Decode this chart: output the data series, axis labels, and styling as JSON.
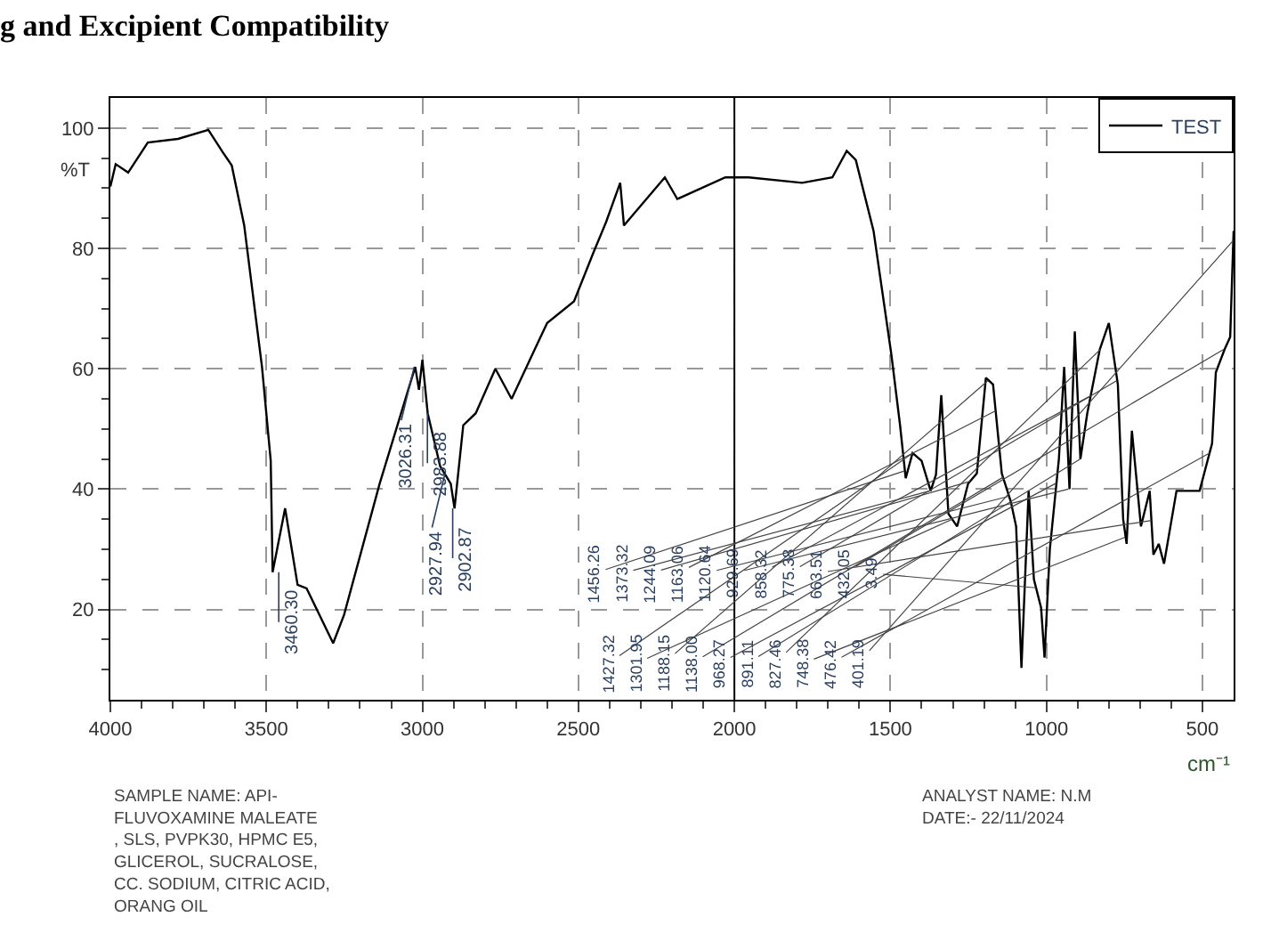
{
  "chart_data": {
    "type": "line",
    "title": "g and Excipient Compatibility",
    "xlabel": "cm⁻¹",
    "ylabel": "%T",
    "x": [
      4000,
      3983,
      3943,
      3880,
      3783,
      3686,
      3640,
      3611,
      3571,
      3514,
      3486,
      3480,
      3440,
      3400,
      3371,
      3286,
      3251,
      3137,
      3023,
      3011,
      3000,
      2983,
      2943,
      2909,
      2897,
      2869,
      2829,
      2766,
      2714,
      2640,
      2600,
      2514,
      2451,
      2411,
      2366,
      2354,
      2223,
      2183,
      2029,
      1954,
      1783,
      1686,
      1640,
      1611,
      1554,
      1497,
      1469,
      1451,
      1429,
      1400,
      1371,
      1354,
      1337,
      1314,
      1286,
      1251,
      1223,
      1194,
      1171,
      1143,
      1114,
      1097,
      1080,
      1057,
      1040,
      1017,
      1006,
      989,
      960,
      943,
      926,
      909,
      891,
      869,
      829,
      800,
      771,
      754,
      743,
      726,
      697,
      669,
      657,
      640,
      623,
      583,
      509,
      469,
      457,
      429,
      411,
      400
    ],
    "series": [
      {
        "name": "TEST",
        "color": "#000000",
        "values": [
          90.3,
          94,
          92.6,
          97.6,
          98.2,
          99.7,
          96,
          93.8,
          83.8,
          60.3,
          44.7,
          26.2,
          36.8,
          24.1,
          23.5,
          14.4,
          19.1,
          40.9,
          60.3,
          56.5,
          61.5,
          52.6,
          43.8,
          40.9,
          36.8,
          50.6,
          52.6,
          60,
          55,
          63.2,
          67.6,
          71.2,
          79.4,
          84.4,
          90.9,
          83.8,
          91.8,
          88.2,
          91.8,
          91.8,
          90.9,
          91.8,
          96.2,
          94.7,
          82.9,
          62.4,
          50.6,
          41.8,
          46,
          44.7,
          39.7,
          42.4,
          55.6,
          35.9,
          33.8,
          40.9,
          42.6,
          58.5,
          57.4,
          42.6,
          37.9,
          33.8,
          10.3,
          39.7,
          25,
          20.3,
          12,
          30,
          45,
          60.3,
          40,
          66.2,
          45,
          52.6,
          63.2,
          67.6,
          57.4,
          35,
          30.9,
          49.7,
          33.8,
          39.7,
          29.1,
          30.9,
          27.6,
          39.7,
          39.7,
          47.6,
          59.4,
          63.2,
          65.3,
          82.9
        ]
      }
    ],
    "xlim": [
      4000,
      400
    ],
    "ylim": [
      5,
      105
    ],
    "xticks": [
      4000,
      {
        "value": 3900,
        "label": null
      },
      {
        "value": 3800,
        "label": null
      },
      {
        "value": 3700,
        "label": null
      },
      {
        "value": 3600,
        "label": null
      },
      3500,
      {
        "value": 3400,
        "label": null
      },
      {
        "value": 3300,
        "label": null
      },
      {
        "value": 3200,
        "label": null
      },
      {
        "value": 3100,
        "label": null
      },
      3000,
      {
        "value": 2900,
        "label": null
      },
      {
        "value": 2800,
        "label": null
      },
      {
        "value": 2700,
        "label": null
      },
      {
        "value": 2600,
        "label": null
      },
      2500,
      {
        "value": 2400,
        "label": null
      },
      {
        "value": 2300,
        "label": null
      },
      {
        "value": 2200,
        "label": null
      },
      {
        "value": 2100,
        "label": null
      },
      2000,
      {
        "value": 1900,
        "label": null
      },
      {
        "value": 1800,
        "label": null
      },
      {
        "value": 1700,
        "label": null
      },
      {
        "value": 1600,
        "label": null
      },
      1500,
      {
        "value": 1400,
        "label": null
      },
      {
        "value": 1300,
        "label": null
      },
      {
        "value": 1200,
        "label": null
      },
      {
        "value": 1100,
        "label": null
      },
      1000,
      {
        "value": 900,
        "label": null
      },
      {
        "value": 800,
        "label": null
      },
      {
        "value": 700,
        "label": null
      },
      {
        "value": 600,
        "label": null
      },
      500
    ],
    "yticks": [
      {
        "value": 10,
        "label": null
      },
      {
        "value": 15,
        "label": null
      },
      20,
      {
        "value": 25,
        "label": null
      },
      {
        "value": 30,
        "label": null
      },
      {
        "value": 35,
        "label": null
      },
      40,
      {
        "value": 45,
        "label": null
      },
      {
        "value": 50,
        "label": null
      },
      {
        "value": 55,
        "label": null
      },
      60,
      {
        "value": 65,
        "label": null
      },
      {
        "value": 70,
        "label": null
      },
      {
        "value": 75,
        "label": null
      },
      80,
      {
        "value": 85,
        "label": null
      },
      {
        "value": 90,
        "label": null
      },
      {
        "value": 95,
        "label": null
      },
      100
    ],
    "grid": true,
    "legend": "top right",
    "marker": "none",
    "line_style": "solid",
    "ref_lines": [
      {
        "axis": "x",
        "value": 2000,
        "color": "#000000",
        "line_style": "solid"
      }
    ],
    "annotations": [
      {
        "text": "3460.30",
        "x": 3460.3,
        "y": 26.2
      },
      {
        "text": "3026.31",
        "x": 3026.31,
        "y": 60.3
      },
      {
        "text": "2983.88",
        "x": 2983.88,
        "y": 52.6
      },
      {
        "text": "2927.94",
        "x": 2927.94,
        "y": 42.5
      },
      {
        "text": "2902.87",
        "x": 2902.87,
        "y": 36.8
      },
      {
        "text": "1456.26",
        "x": 1456.26,
        "y": 43
      },
      {
        "text": "1427.32",
        "x": 1427.32,
        "y": 46
      },
      {
        "text": "1373.32",
        "x": 1373.32,
        "y": 39.7
      },
      {
        "text": "1301.95",
        "x": 1301.95,
        "y": 35
      },
      {
        "text": "1244.09",
        "x": 1244.09,
        "y": 41.3
      },
      {
        "text": "1188.15",
        "x": 1188.15,
        "y": 58
      },
      {
        "text": "1163.06",
        "x": 1163.06,
        "y": 53
      },
      {
        "text": "1138.00",
        "x": 1138.0,
        "y": 42
      },
      {
        "text": "1120.64",
        "x": 1120.64,
        "y": 38.8
      },
      {
        "text": "968.27",
        "x": 968.27,
        "y": 41
      },
      {
        "text": "929.69",
        "x": 929.69,
        "y": 40
      },
      {
        "text": "891.11",
        "x": 891.11,
        "y": 45
      },
      {
        "text": "858.32",
        "x": 858.32,
        "y": 55.5
      },
      {
        "text": "827.46",
        "x": 827.46,
        "y": 63.2
      },
      {
        "text": "775.38",
        "x": 775.38,
        "y": 58
      },
      {
        "text": "748.38",
        "x": 748.38,
        "y": 32
      },
      {
        "text": "663.51",
        "x": 663.51,
        "y": 34.8
      },
      {
        "text": "476.42",
        "x": 476.42,
        "y": 46
      },
      {
        "text": "432.05",
        "x": 432.05,
        "y": 63.2
      },
      {
        "text": "401.19",
        "x": 401.19,
        "y": 81.3
      },
      {
        "text": "3.49",
        "x": 1033.49,
        "y": 23.6
      },
      "SAMPLE NAME: API-\nFLUVOXAMINE MALEATE\n, SLS, PVPK30, HPMC E5,\nGLICEROL, SUCRALOSE,\nCC. SODIUM, CITRIC ACID,\nORANG OIL",
      "ANALYST NAME: N.M\nDATE:- 22/11/2024"
    ]
  }
}
